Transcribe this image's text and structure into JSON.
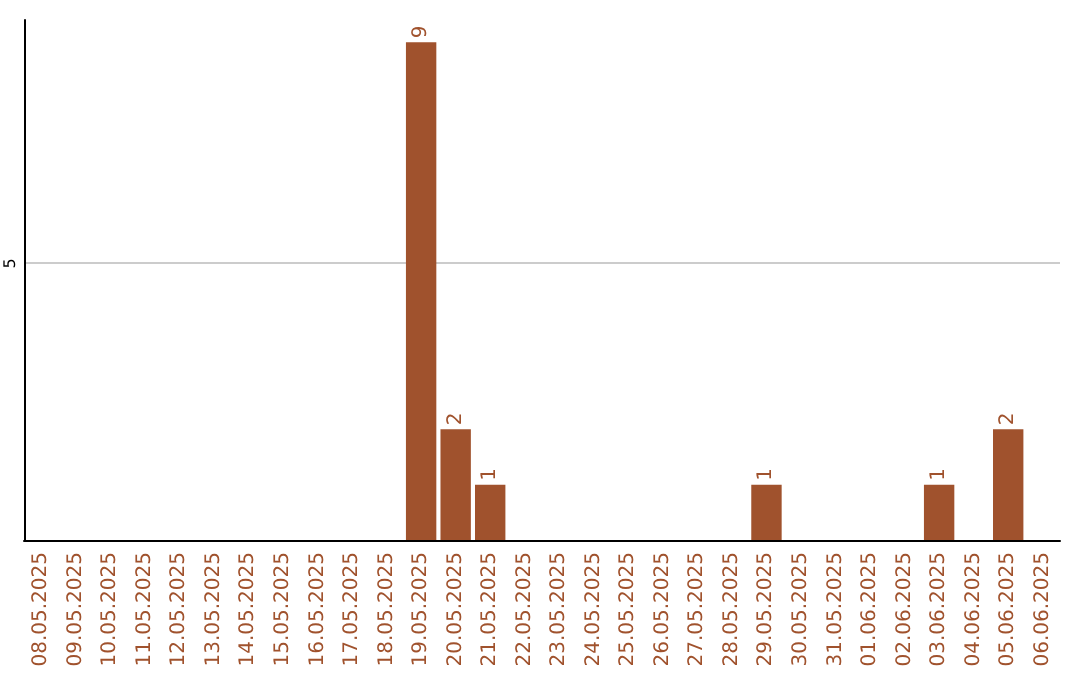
{
  "chart_data": {
    "type": "bar",
    "categories": [
      "08.05.2025",
      "09.05.2025",
      "10.05.2025",
      "11.05.2025",
      "12.05.2025",
      "13.05.2025",
      "14.05.2025",
      "15.05.2025",
      "16.05.2025",
      "17.05.2025",
      "18.05.2025",
      "19.05.2025",
      "20.05.2025",
      "21.05.2025",
      "22.05.2025",
      "23.05.2025",
      "24.05.2025",
      "25.05.2025",
      "26.05.2025",
      "27.05.2025",
      "28.05.2025",
      "29.05.2025",
      "30.05.2025",
      "31.05.2025",
      "01.06.2025",
      "02.06.2025",
      "03.06.2025",
      "04.06.2025",
      "05.06.2025",
      "06.06.2025"
    ],
    "values": [
      0,
      0,
      0,
      0,
      0,
      0,
      0,
      0,
      0,
      0,
      0,
      9,
      2,
      1,
      0,
      0,
      0,
      0,
      0,
      0,
      0,
      1,
      0,
      0,
      0,
      0,
      1,
      0,
      2,
      0
    ],
    "value_labels": [
      null,
      null,
      null,
      null,
      null,
      null,
      null,
      null,
      null,
      null,
      null,
      "9",
      "2",
      "1",
      null,
      null,
      null,
      null,
      null,
      null,
      null,
      "1",
      null,
      null,
      null,
      null,
      "1",
      null,
      "2",
      null
    ],
    "color": "#a0522d",
    "ylim": [
      0,
      9.4
    ],
    "yticks": [
      5
    ],
    "grid": "y"
  }
}
